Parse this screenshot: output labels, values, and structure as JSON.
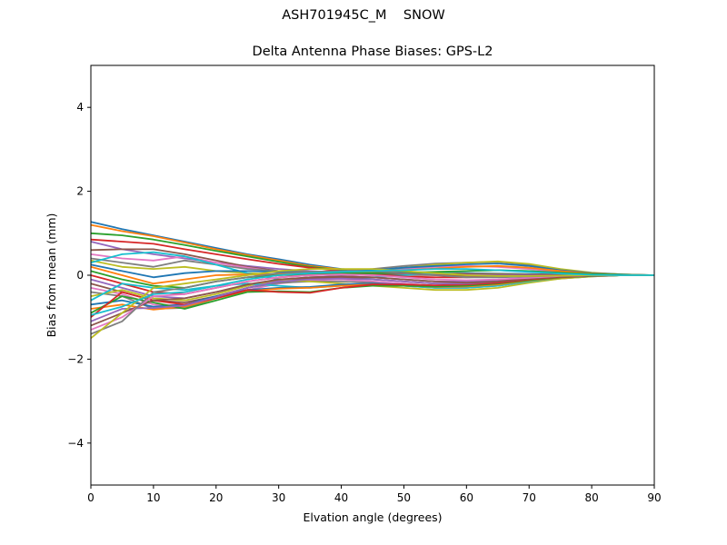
{
  "suptitle": "ASH701945C_M    SNOW",
  "chart_data": {
    "type": "line",
    "title": "Delta Antenna Phase Biases: GPS-L2",
    "xlabel": "Elvation angle (degrees)",
    "ylabel": "Bias from mean (mm)",
    "xlim": [
      0,
      90
    ],
    "ylim": [
      -5,
      5
    ],
    "xticks": [
      0,
      10,
      20,
      30,
      40,
      50,
      60,
      70,
      80,
      90
    ],
    "yticks": [
      -4,
      -2,
      0,
      2,
      4
    ],
    "ytick_labels": [
      "−4",
      "−2",
      "0",
      "2",
      "4"
    ],
    "grid": false,
    "legend": "none",
    "x": [
      0,
      5,
      10,
      15,
      20,
      25,
      30,
      35,
      40,
      45,
      50,
      55,
      60,
      65,
      70,
      75,
      80,
      85,
      90
    ],
    "colors": [
      "#1f77b4",
      "#ff7f0e",
      "#2ca02c",
      "#d62728",
      "#9467bd",
      "#8c564b",
      "#e377c2",
      "#7f7f7f",
      "#bcbd22",
      "#17becf"
    ],
    "series": [
      {
        "values": [
          1.27,
          1.1,
          0.95,
          0.8,
          0.65,
          0.5,
          0.38,
          0.25,
          0.15,
          0.1,
          0.08,
          0.06,
          0.05,
          0.04,
          0.03,
          0.02,
          0.01,
          0.0,
          0.0
        ]
      },
      {
        "values": [
          1.2,
          1.05,
          0.93,
          0.78,
          0.62,
          0.48,
          0.35,
          0.22,
          0.14,
          0.08,
          0.05,
          0.04,
          0.03,
          0.03,
          0.02,
          0.02,
          0.01,
          0.0,
          0.0
        ]
      },
      {
        "values": [
          1.0,
          0.95,
          0.85,
          0.72,
          0.58,
          0.45,
          0.32,
          0.2,
          0.12,
          0.07,
          0.04,
          0.03,
          0.02,
          0.02,
          0.02,
          0.01,
          0.01,
          0.0,
          0.0
        ]
      },
      {
        "values": [
          0.85,
          0.8,
          0.75,
          0.62,
          0.5,
          0.38,
          0.27,
          0.18,
          0.1,
          0.06,
          0.03,
          0.02,
          0.02,
          0.01,
          0.01,
          0.01,
          0.0,
          0.0,
          0.0
        ]
      },
      {
        "values": [
          0.8,
          0.62,
          0.5,
          0.4,
          0.3,
          0.22,
          0.15,
          0.1,
          0.06,
          0.04,
          0.03,
          0.02,
          0.01,
          0.01,
          0.01,
          0.0,
          0.0,
          0.0,
          0.0
        ]
      },
      {
        "values": [
          0.6,
          0.62,
          0.62,
          0.5,
          0.35,
          0.2,
          0.1,
          0.05,
          0.03,
          0.02,
          0.01,
          0.0,
          -0.01,
          -0.01,
          -0.01,
          0.0,
          0.0,
          0.0,
          0.0
        ]
      },
      {
        "values": [
          0.5,
          0.4,
          0.35,
          0.45,
          0.3,
          0.18,
          0.08,
          0.05,
          0.06,
          0.1,
          0.15,
          0.2,
          0.22,
          0.2,
          0.15,
          0.08,
          0.03,
          0.01,
          0.0
        ]
      },
      {
        "values": [
          0.4,
          0.3,
          0.2,
          0.35,
          0.25,
          0.15,
          0.1,
          0.08,
          0.1,
          0.15,
          0.22,
          0.28,
          0.3,
          0.32,
          0.25,
          0.12,
          0.05,
          0.02,
          0.0
        ]
      },
      {
        "values": [
          0.35,
          0.2,
          0.15,
          0.2,
          0.1,
          0.05,
          0.02,
          0.02,
          0.05,
          0.1,
          0.18,
          0.25,
          0.3,
          0.33,
          0.27,
          0.15,
          0.06,
          0.02,
          0.0
        ]
      },
      {
        "values": [
          0.3,
          0.5,
          0.55,
          0.45,
          0.25,
          0.05,
          -0.1,
          -0.12,
          -0.08,
          -0.05,
          0.0,
          0.05,
          0.1,
          0.12,
          0.1,
          0.05,
          0.02,
          0.0,
          0.0
        ]
      },
      {
        "values": [
          0.25,
          0.1,
          -0.05,
          0.05,
          0.1,
          0.1,
          0.08,
          0.06,
          0.08,
          0.12,
          0.18,
          0.22,
          0.26,
          0.28,
          0.22,
          0.12,
          0.05,
          0.02,
          0.0
        ]
      },
      {
        "values": [
          0.2,
          0.0,
          -0.2,
          -0.1,
          0.0,
          0.02,
          0.02,
          0.03,
          0.06,
          0.08,
          0.12,
          0.16,
          0.2,
          0.22,
          0.18,
          0.1,
          0.04,
          0.01,
          0.0
        ]
      },
      {
        "values": [
          0.1,
          -0.1,
          -0.25,
          -0.3,
          -0.15,
          -0.05,
          0.0,
          0.02,
          0.05,
          0.05,
          0.06,
          0.08,
          0.1,
          0.12,
          0.1,
          0.06,
          0.03,
          0.01,
          0.0
        ]
      },
      {
        "values": [
          0.0,
          -0.2,
          -0.4,
          -0.45,
          -0.3,
          -0.15,
          -0.05,
          0.0,
          0.02,
          0.0,
          -0.03,
          -0.05,
          -0.05,
          -0.03,
          -0.02,
          -0.01,
          0.0,
          0.0,
          0.0
        ]
      },
      {
        "values": [
          -0.1,
          -0.3,
          -0.5,
          -0.55,
          -0.4,
          -0.25,
          -0.12,
          -0.05,
          -0.02,
          -0.05,
          -0.1,
          -0.15,
          -0.15,
          -0.12,
          -0.08,
          -0.04,
          -0.01,
          0.0,
          0.0
        ]
      },
      {
        "values": [
          -0.2,
          -0.4,
          -0.6,
          -0.65,
          -0.5,
          -0.3,
          -0.15,
          -0.08,
          -0.05,
          -0.1,
          -0.15,
          -0.2,
          -0.2,
          -0.15,
          -0.1,
          -0.05,
          -0.02,
          0.0,
          0.0
        ]
      },
      {
        "values": [
          -0.3,
          -0.45,
          -0.7,
          -0.72,
          -0.55,
          -0.35,
          -0.2,
          -0.12,
          -0.1,
          -0.15,
          -0.2,
          -0.25,
          -0.25,
          -0.2,
          -0.12,
          -0.06,
          -0.02,
          0.0,
          0.0
        ]
      },
      {
        "values": [
          -0.4,
          -0.5,
          -0.8,
          -0.78,
          -0.55,
          -0.3,
          -0.18,
          -0.15,
          -0.15,
          -0.18,
          -0.25,
          -0.3,
          -0.3,
          -0.25,
          -0.15,
          -0.08,
          -0.03,
          0.0,
          0.0
        ]
      },
      {
        "values": [
          -0.5,
          -0.35,
          -0.55,
          -0.6,
          -0.45,
          -0.25,
          -0.1,
          -0.15,
          -0.2,
          -0.25,
          -0.3,
          -0.35,
          -0.35,
          -0.3,
          -0.18,
          -0.08,
          -0.03,
          0.0,
          0.0
        ]
      },
      {
        "values": [
          -0.6,
          -0.2,
          -0.3,
          -0.35,
          -0.25,
          -0.2,
          -0.25,
          -0.3,
          -0.25,
          -0.22,
          -0.25,
          -0.3,
          -0.3,
          -0.25,
          -0.15,
          -0.06,
          -0.02,
          0.0,
          0.0
        ]
      },
      {
        "values": [
          -0.7,
          -0.6,
          -0.75,
          -0.7,
          -0.5,
          -0.35,
          -0.3,
          -0.28,
          -0.22,
          -0.2,
          -0.22,
          -0.25,
          -0.25,
          -0.2,
          -0.12,
          -0.05,
          -0.02,
          0.0,
          0.0
        ]
      },
      {
        "values": [
          -0.8,
          -0.7,
          -0.82,
          -0.75,
          -0.55,
          -0.38,
          -0.32,
          -0.3,
          -0.25,
          -0.22,
          -0.24,
          -0.28,
          -0.27,
          -0.22,
          -0.13,
          -0.06,
          -0.02,
          0.0,
          0.0
        ]
      },
      {
        "values": [
          -0.9,
          -0.5,
          -0.65,
          -0.8,
          -0.6,
          -0.4,
          -0.38,
          -0.4,
          -0.3,
          -0.25,
          -0.25,
          -0.27,
          -0.25,
          -0.2,
          -0.12,
          -0.05,
          -0.02,
          0.0,
          0.0
        ]
      },
      {
        "values": [
          -1.0,
          -0.4,
          -0.6,
          -0.7,
          -0.55,
          -0.35,
          -0.4,
          -0.42,
          -0.3,
          -0.22,
          -0.22,
          -0.24,
          -0.22,
          -0.18,
          -0.1,
          -0.04,
          -0.01,
          0.0,
          0.0
        ]
      },
      {
        "values": [
          -1.1,
          -0.8,
          -0.78,
          -0.72,
          -0.52,
          -0.3,
          -0.15,
          -0.1,
          -0.08,
          -0.1,
          -0.15,
          -0.2,
          -0.2,
          -0.15,
          -0.08,
          -0.03,
          -0.01,
          0.0,
          0.0
        ]
      },
      {
        "values": [
          -1.2,
          -0.9,
          -0.6,
          -0.55,
          -0.4,
          -0.22,
          -0.1,
          -0.05,
          -0.03,
          -0.05,
          -0.1,
          -0.15,
          -0.18,
          -0.15,
          -0.08,
          -0.03,
          -0.01,
          0.0,
          0.0
        ]
      },
      {
        "values": [
          -1.3,
          -1.0,
          -0.5,
          -0.45,
          -0.3,
          -0.15,
          -0.05,
          0.0,
          0.02,
          0.0,
          -0.05,
          -0.1,
          -0.12,
          -0.1,
          -0.06,
          -0.02,
          0.0,
          0.0,
          0.0
        ]
      },
      {
        "values": [
          -1.4,
          -1.1,
          -0.4,
          -0.3,
          -0.15,
          -0.05,
          0.05,
          0.08,
          0.1,
          0.1,
          0.05,
          0.0,
          -0.05,
          -0.05,
          -0.03,
          -0.01,
          0.0,
          0.0,
          0.0
        ]
      },
      {
        "values": [
          -1.5,
          -0.9,
          -0.3,
          -0.2,
          -0.1,
          0.0,
          0.1,
          0.15,
          0.15,
          0.15,
          0.1,
          0.05,
          0.0,
          -0.02,
          -0.02,
          -0.01,
          0.0,
          0.0,
          0.0
        ]
      },
      {
        "values": [
          -0.95,
          -0.75,
          -0.45,
          -0.4,
          -0.25,
          -0.1,
          0.0,
          0.05,
          0.08,
          0.1,
          0.12,
          0.15,
          0.15,
          0.12,
          0.08,
          0.04,
          0.01,
          0.0,
          0.0
        ]
      }
    ]
  }
}
